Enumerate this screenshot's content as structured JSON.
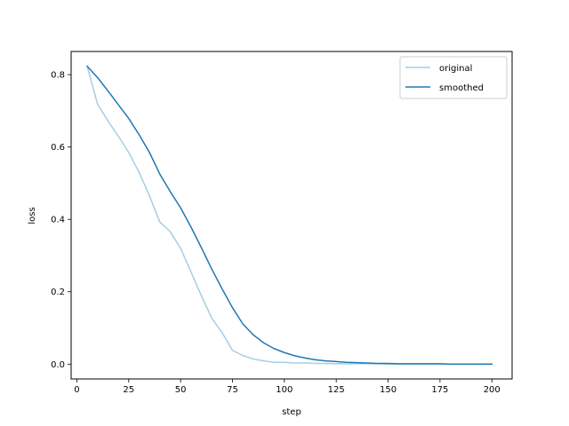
{
  "chart_data": {
    "type": "line",
    "title": "",
    "xlabel": "step",
    "ylabel": "loss",
    "xlim": [
      -2.75,
      209.75
    ],
    "ylim": [
      -0.041,
      0.864
    ],
    "x_ticks": [
      0,
      25,
      50,
      75,
      100,
      125,
      150,
      175,
      200
    ],
    "y_ticks": [
      0.0,
      0.2,
      0.4,
      0.6,
      0.8
    ],
    "x_tick_labels": [
      "0",
      "25",
      "50",
      "75",
      "100",
      "125",
      "150",
      "175",
      "200"
    ],
    "y_tick_labels": [
      "0.0",
      "0.2",
      "0.4",
      "0.6",
      "0.8"
    ],
    "grid": false,
    "legend_position": "top-right",
    "x": [
      5,
      10,
      15,
      20,
      25,
      30,
      35,
      40,
      45,
      50,
      55,
      60,
      65,
      70,
      75,
      80,
      85,
      90,
      95,
      100,
      105,
      110,
      115,
      120,
      125,
      130,
      135,
      140,
      145,
      150,
      155,
      160,
      165,
      170,
      175,
      180,
      185,
      190,
      195,
      200
    ],
    "series": [
      {
        "name": "original",
        "color": "#a6cee3",
        "values": [
          0.823,
          0.718,
          0.672,
          0.63,
          0.585,
          0.53,
          0.465,
          0.393,
          0.366,
          0.32,
          0.255,
          0.189,
          0.127,
          0.087,
          0.038,
          0.024,
          0.014,
          0.009,
          0.005,
          0.005,
          0.003,
          0.003,
          0.002,
          0.002,
          0.001,
          0.001,
          0.001,
          0.001,
          0.001,
          0.0,
          0.0,
          0.0,
          0.0,
          0.0,
          0.0,
          0.0,
          0.0,
          0.0,
          0.0,
          0.0
        ]
      },
      {
        "name": "smoothed",
        "color": "#1f78b4",
        "values": [
          0.823,
          0.792,
          0.755,
          0.717,
          0.679,
          0.634,
          0.585,
          0.525,
          0.477,
          0.432,
          0.379,
          0.322,
          0.263,
          0.208,
          0.156,
          0.111,
          0.081,
          0.059,
          0.043,
          0.032,
          0.023,
          0.017,
          0.012,
          0.009,
          0.007,
          0.005,
          0.004,
          0.003,
          0.002,
          0.002,
          0.001,
          0.001,
          0.001,
          0.001,
          0.001,
          0.0,
          0.0,
          0.0,
          0.0,
          0.0
        ]
      }
    ]
  }
}
